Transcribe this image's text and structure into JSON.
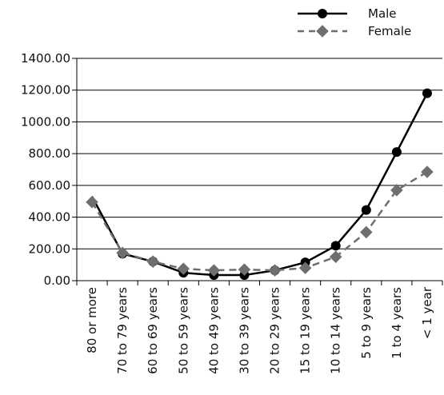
{
  "chart_data": {
    "type": "line",
    "categories": [
      "80 or more",
      "70 to 79 years",
      "60 to 69 years",
      "50 to 59 years",
      "40 to 49 years",
      "30 to 39 years",
      "20 to 29 years",
      "15 to 19 years",
      "10 to 14 years",
      "5 to 9 years",
      "1 to 4 years",
      "< 1 year"
    ],
    "series": [
      {
        "name": "Male",
        "values": [
          530,
          170,
          120,
          50,
          35,
          35,
          65,
          115,
          220,
          445,
          810,
          1180
        ],
        "color": "#000000",
        "marker": "circle",
        "line_style": "solid"
      },
      {
        "name": "Female",
        "values": [
          495,
          175,
          120,
          75,
          65,
          70,
          65,
          80,
          150,
          305,
          570,
          685
        ],
        "color": "#6e6e6e",
        "marker": "diamond",
        "line_style": "dashed"
      }
    ],
    "ylim": [
      0,
      1400
    ],
    "y_ticks": [
      "0.00",
      "200.00",
      "400.00",
      "600.00",
      "800.00",
      "1000.00",
      "1200.00",
      "1400.00"
    ],
    "grid": "horizontal",
    "legend_position": "top-right"
  }
}
